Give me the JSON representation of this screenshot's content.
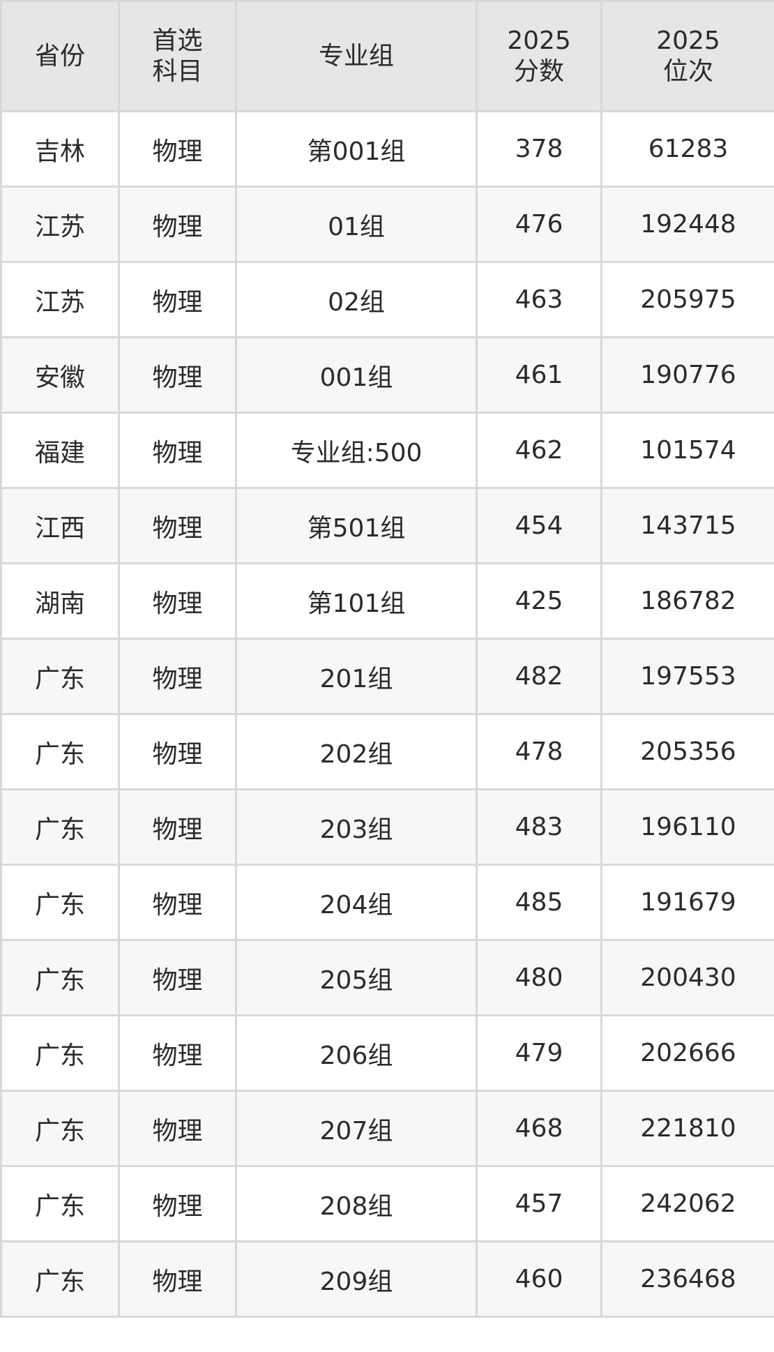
{
  "table": {
    "headers": [
      [
        "省份"
      ],
      [
        "首选",
        "科目"
      ],
      [
        "专业组"
      ],
      [
        "2025",
        "分数"
      ],
      [
        "2025",
        "位次"
      ]
    ],
    "rows": [
      [
        "吉林",
        "物理",
        "第001组",
        "378",
        "61283"
      ],
      [
        "江苏",
        "物理",
        "01组",
        "476",
        "192448"
      ],
      [
        "江苏",
        "物理",
        "02组",
        "463",
        "205975"
      ],
      [
        "安徽",
        "物理",
        "001组",
        "461",
        "190776"
      ],
      [
        "福建",
        "物理",
        "专业组:500",
        "462",
        "101574"
      ],
      [
        "江西",
        "物理",
        "第501组",
        "454",
        "143715"
      ],
      [
        "湖南",
        "物理",
        "第101组",
        "425",
        "186782"
      ],
      [
        "广东",
        "物理",
        "201组",
        "482",
        "197553"
      ],
      [
        "广东",
        "物理",
        "202组",
        "478",
        "205356"
      ],
      [
        "广东",
        "物理",
        "203组",
        "483",
        "196110"
      ],
      [
        "广东",
        "物理",
        "204组",
        "485",
        "191679"
      ],
      [
        "广东",
        "物理",
        "205组",
        "480",
        "200430"
      ],
      [
        "广东",
        "物理",
        "206组",
        "479",
        "202666"
      ],
      [
        "广东",
        "物理",
        "207组",
        "468",
        "221810"
      ],
      [
        "广东",
        "物理",
        "208组",
        "457",
        "242062"
      ],
      [
        "广东",
        "物理",
        "209组",
        "460",
        "236468"
      ]
    ]
  }
}
